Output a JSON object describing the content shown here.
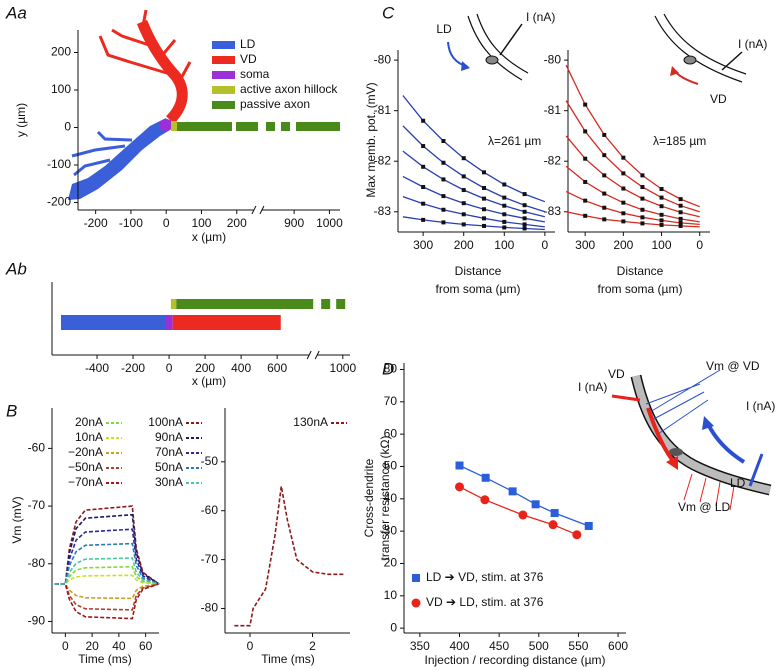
{
  "chart_data": [
    {
      "type": "morphology",
      "panel_label": "Aa",
      "xlabel": "x (µm)",
      "ylabel": "y (µm)",
      "xlim": [
        -250,
        1030
      ],
      "xbreak": [
        260,
        820
      ],
      "xticks": [
        -200,
        -100,
        0,
        100,
        200,
        900,
        1000
      ],
      "ylim": [
        -220,
        260
      ],
      "yticks": [
        -200,
        -100,
        0,
        100,
        200
      ],
      "legend": "upper right",
      "series": [
        {
          "name": "LD",
          "color": "#3a5fd9"
        },
        {
          "name": "VD",
          "color": "#ec2a1f"
        },
        {
          "name": "soma",
          "color": "#9b30d9"
        },
        {
          "name": "active axon hillock",
          "color": "#b5c02a"
        },
        {
          "name": "passive axon",
          "color": "#4a8a1a"
        }
      ]
    },
    {
      "type": "segments",
      "panel_label": "Ab",
      "xlabel": "x (µm)",
      "xlim": [
        -650,
        1040
      ],
      "xbreak": [
        800,
        880
      ],
      "xticks": [
        -400,
        -200,
        0,
        200,
        400,
        600,
        1000
      ],
      "segments": [
        {
          "color": "#3a5fd9",
          "x": [
            -600,
            0
          ]
        },
        {
          "color": "#9b30d9",
          "x": [
            -20,
            20
          ]
        },
        {
          "color": "#ec2a1f",
          "x": [
            20,
            620
          ]
        },
        {
          "color": "#b5c02a",
          "x": [
            10,
            40
          ]
        },
        {
          "color": "#4a8a1a",
          "x": [
            40,
            1020
          ]
        }
      ]
    },
    {
      "type": "line",
      "panel_label": "B",
      "xlabel": "Time (ms)",
      "ylabel": "Vm (mV)",
      "dashed": true,
      "legend": "upper left",
      "x": [
        -8,
        0,
        3,
        8,
        15,
        50,
        53,
        58,
        70
      ],
      "xlim": [
        -10,
        70
      ],
      "xticks": [
        0,
        20,
        40,
        60
      ],
      "ylim": [
        -92,
        -53
      ],
      "yticks": [
        -90,
        -80,
        -70,
        -60
      ],
      "series": [
        {
          "name": "20nA",
          "color": "#7ddc3a",
          "values": [
            -83.5,
            -83.5,
            -82.2,
            -81.1,
            -80.7,
            -80.5,
            -82.2,
            -83.1,
            -83.5
          ]
        },
        {
          "name": "10nA",
          "color": "#c8e02a",
          "values": [
            -83.5,
            -83.5,
            -82.8,
            -82.3,
            -82.1,
            -82,
            -82.8,
            -83.3,
            -83.5
          ]
        },
        {
          "name": "−20nA",
          "color": "#c8a020",
          "values": [
            -83.5,
            -83.5,
            -84.6,
            -85.5,
            -85.9,
            -86,
            -84.6,
            -83.9,
            -83.5
          ]
        },
        {
          "name": "−50nA",
          "color": "#b0402a",
          "values": [
            -83.5,
            -83.5,
            -85.5,
            -87.1,
            -87.8,
            -88,
            -85.5,
            -84.2,
            -83.5
          ]
        },
        {
          "name": "−70nA",
          "color": "#a01818",
          "values": [
            -83.5,
            -83.5,
            -86.2,
            -88.3,
            -89.2,
            -89.5,
            -86.2,
            -84.4,
            -83.5
          ]
        },
        {
          "name": "100nA",
          "color": "#8b1a1a",
          "values": [
            -83.5,
            -83.5,
            -77.4,
            -72.7,
            -70.7,
            -70,
            -77.4,
            -81.5,
            -83.5
          ]
        },
        {
          "name": "90nA",
          "color": "#1a1a6a",
          "values": [
            -83.5,
            -83.5,
            -78.1,
            -73.9,
            -72.1,
            -71.5,
            -78.1,
            -81.7,
            -83.5
          ]
        },
        {
          "name": "70nA",
          "color": "#2a2a9a",
          "values": [
            -83.5,
            -83.5,
            -79.2,
            -75.9,
            -74.5,
            -74,
            -79.2,
            -82.1,
            -83.5
          ]
        },
        {
          "name": "50nA",
          "color": "#2a7ab8",
          "values": [
            -83.5,
            -83.5,
            -80.3,
            -77.9,
            -76.8,
            -76.5,
            -80.3,
            -82.5,
            -83.5
          ]
        },
        {
          "name": "30nA",
          "color": "#4ac8a0",
          "values": [
            -83.5,
            -83.5,
            -81.5,
            -79.9,
            -79.2,
            -79,
            -81.5,
            -82.8,
            -83.5
          ]
        }
      ]
    },
    {
      "type": "line",
      "xlabel": "Time (ms)",
      "dashed": true,
      "legend": "upper right",
      "x": [
        -0.5,
        0,
        0.1,
        0.5,
        0.8,
        1,
        1.2,
        1.5,
        2,
        2.5,
        3
      ],
      "xlim": [
        -0.8,
        3.2
      ],
      "xticks": [
        0,
        2
      ],
      "ylim": [
        -85,
        -39
      ],
      "yticks": [
        -80,
        -70,
        -60,
        -50
      ],
      "series": [
        {
          "name": "130nA",
          "color": "#8b1a1a",
          "values": [
            -83.5,
            -83.5,
            -80,
            -76,
            -65,
            -55,
            -62,
            -70,
            -72.5,
            -73,
            -73
          ]
        }
      ]
    },
    {
      "type": "line",
      "panel_label": "C",
      "ylabel": "Max memb. pot. (mV)",
      "xlabel": [
        "Distance",
        "from soma (µm)"
      ],
      "annotation": "λ=261 µm",
      "inset_labels": [
        "LD",
        "I (nA)"
      ],
      "markers": true,
      "color": "#2a3fb0",
      "x": [
        350,
        300,
        250,
        200,
        150,
        100,
        50,
        0
      ],
      "xlim": [
        362,
        -25
      ],
      "xticks": [
        300,
        200,
        100,
        0
      ],
      "ylim": [
        -83.4,
        -79.8
      ],
      "yticks": [
        -80,
        -81,
        -82,
        -83
      ],
      "series": [
        {
          "values": [
            -80.7,
            -81.2,
            -81.6,
            -81.94,
            -82.22,
            -82.46,
            -82.65,
            -82.8
          ]
        },
        {
          "values": [
            -81.3,
            -81.7,
            -82.03,
            -82.3,
            -82.53,
            -82.72,
            -82.87,
            -83.0
          ]
        },
        {
          "values": [
            -81.8,
            -82.11,
            -82.36,
            -82.57,
            -82.74,
            -82.88,
            -83.0,
            -83.1
          ]
        },
        {
          "values": [
            -82.3,
            -82.51,
            -82.69,
            -82.83,
            -82.95,
            -83.05,
            -83.13,
            -83.2
          ]
        },
        {
          "values": [
            -82.7,
            -82.84,
            -82.96,
            -83.05,
            -83.13,
            -83.2,
            -83.25,
            -83.3
          ]
        },
        {
          "values": [
            -83.1,
            -83.16,
            -83.21,
            -83.25,
            -83.28,
            -83.31,
            -83.33,
            -83.35
          ]
        }
      ]
    },
    {
      "type": "line",
      "xlabel": [
        "Distance",
        "from soma (µm)"
      ],
      "annotation": "λ=185 µm",
      "inset_labels": [
        "I (nA)",
        "VD"
      ],
      "markers": true,
      "color": "#d42a1f",
      "x": [
        350,
        300,
        250,
        200,
        150,
        100,
        50,
        0
      ],
      "xlim": [
        345,
        -27
      ],
      "xticks": [
        300,
        200,
        100,
        0
      ],
      "ylim": [
        -83.4,
        -79.8
      ],
      "yticks": [
        -80,
        -81,
        -82,
        -83
      ],
      "series": [
        {
          "values": [
            -80.1,
            -80.88,
            -81.48,
            -81.93,
            -82.28,
            -82.55,
            -82.75,
            -82.9
          ]
        },
        {
          "values": [
            -80.8,
            -81.41,
            -81.88,
            -82.24,
            -82.51,
            -82.72,
            -82.88,
            -83.0
          ]
        },
        {
          "values": [
            -81.5,
            -81.95,
            -82.28,
            -82.54,
            -82.74,
            -82.89,
            -83.01,
            -83.1
          ]
        },
        {
          "values": [
            -82.1,
            -82.41,
            -82.64,
            -82.82,
            -82.96,
            -83.06,
            -83.14,
            -83.2
          ]
        },
        {
          "values": [
            -82.6,
            -82.78,
            -82.92,
            -83.03,
            -83.11,
            -83.17,
            -83.22,
            -83.25
          ]
        },
        {
          "values": [
            -83.0,
            -83.08,
            -83.15,
            -83.19,
            -83.23,
            -83.26,
            -83.28,
            -83.3
          ]
        }
      ]
    },
    {
      "type": "line",
      "panel_label": "D",
      "xlabel": "Injection / recording distance (µm)",
      "ylabel": [
        "Cross-dendrite",
        "transfer resistance (kΩ)"
      ],
      "inset_labels": [
        "Vm @ VD",
        "VD",
        "I (nA)",
        "I (nA)",
        "LD",
        "Vm @ LD"
      ],
      "legend": "lower left",
      "xlim": [
        330,
        610
      ],
      "xticks": [
        350,
        400,
        450,
        500,
        550,
        600
      ],
      "ylim": [
        -1.5,
        82
      ],
      "yticks": [
        0,
        10,
        20,
        30,
        40,
        50,
        60,
        70,
        80
      ],
      "series": [
        {
          "name": "LD ➔ VD, stim. at 376",
          "color": "#2a5fd9",
          "marker": "square",
          "x": [
            400,
            433,
            467,
            496,
            520,
            563
          ],
          "values": [
            50.3,
            46.5,
            42.3,
            38.3,
            35.6,
            31.6
          ]
        },
        {
          "name": "VD ➔ LD, stim. at 376",
          "color": "#e8231a",
          "marker": "circle",
          "x": [
            400,
            432,
            480,
            518,
            548
          ],
          "values": [
            43.7,
            39.7,
            35,
            32,
            28.9
          ]
        }
      ]
    }
  ]
}
